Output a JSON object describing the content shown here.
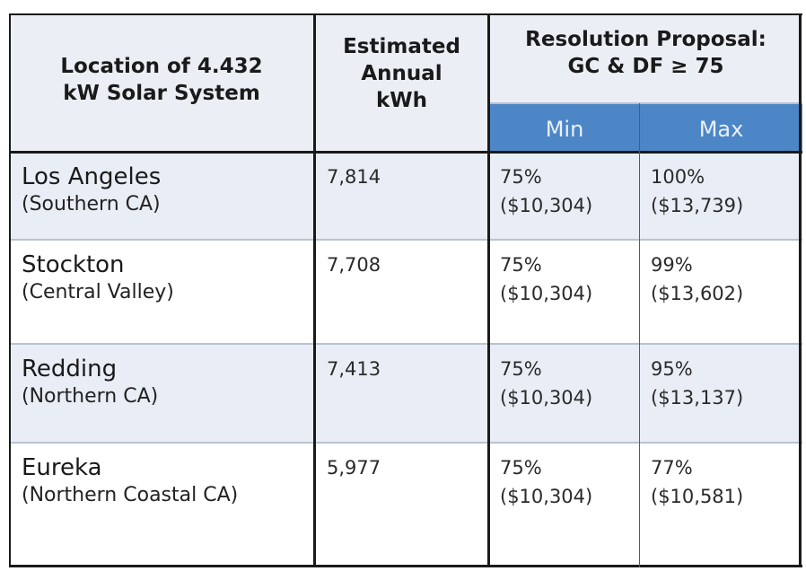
{
  "chart_data": {
    "type": "table",
    "headers": {
      "location": [
        "Location of 4.432",
        "kW Solar System"
      ],
      "annual": [
        "Estimated",
        "Annual",
        "kWh"
      ],
      "proposal": [
        "Resolution Proposal:",
        "GC & DF ≥ 75"
      ],
      "min": "Min",
      "max": "Max"
    },
    "rows": [
      {
        "city": "Los Angeles",
        "region": "(Southern CA)",
        "kwh": "7,814",
        "min_pct": "75%",
        "min_amt": "($10,304)",
        "max_pct": "100%",
        "max_amt": "($13,739)"
      },
      {
        "city": "Stockton",
        "region": "(Central Valley)",
        "kwh": "7,708",
        "min_pct": "75%",
        "min_amt": "($10,304)",
        "max_pct": "99%",
        "max_amt": "($13,602)"
      },
      {
        "city": "Redding",
        "region": "(Northern CA)",
        "kwh": "7,413",
        "min_pct": "75%",
        "min_amt": "($10,304)",
        "max_pct": "95%",
        "max_amt": "($13,137)"
      },
      {
        "city": "Eureka",
        "region": "(Northern Coastal CA)",
        "kwh": "5,977",
        "min_pct": "75%",
        "min_amt": "($10,304)",
        "max_pct": "77%",
        "max_amt": "($10,581)"
      }
    ]
  },
  "colors": {
    "header_bg": "#ebeff5",
    "subheader_bg": "#4d86c6",
    "row_shaded": "#e9edf5",
    "row_plain": "#ffffff"
  }
}
